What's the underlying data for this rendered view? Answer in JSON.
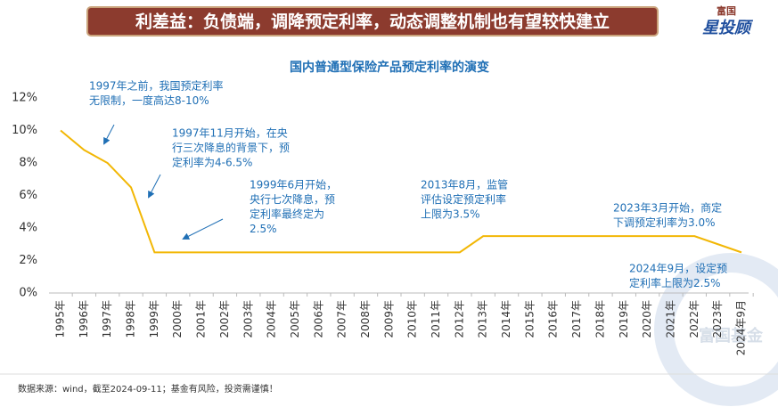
{
  "header": {
    "title": "利差益：负债端，调降预定利率，动态调整机制也有望较快建立",
    "logo_top": "富国",
    "logo_bottom": "星投顾"
  },
  "chart_data": {
    "type": "line",
    "title": "国内普通型保险产品预定利率的演变",
    "categories": [
      "1995年",
      "1996年",
      "1997年",
      "1998年",
      "1999年",
      "2000年",
      "2001年",
      "2002年",
      "2003年",
      "2004年",
      "2005年",
      "2006年",
      "2007年",
      "2008年",
      "2009年",
      "2010年",
      "2011年",
      "2012年",
      "2013年",
      "2014年",
      "2015年",
      "2016年",
      "2017年",
      "2018年",
      "2019年",
      "2020年",
      "2021年",
      "2022年",
      "2023年",
      "2024年9月"
    ],
    "series": [
      {
        "name": "预定利率",
        "color": "#f2b705",
        "values": [
          10,
          8.8,
          8,
          6.5,
          2.5,
          2.5,
          2.5,
          2.5,
          2.5,
          2.5,
          2.5,
          2.5,
          2.5,
          2.5,
          2.5,
          2.5,
          2.5,
          2.5,
          3.5,
          3.5,
          3.5,
          3.5,
          3.5,
          3.5,
          3.5,
          3.5,
          3.5,
          3.5,
          3.0,
          2.5
        ]
      }
    ],
    "ylim": [
      0,
      12
    ],
    "yticks": [
      {
        "value": 0,
        "label": "0%"
      },
      {
        "value": 2,
        "label": "2%"
      },
      {
        "value": 4,
        "label": "4%"
      },
      {
        "value": 6,
        "label": "6%"
      },
      {
        "value": 8,
        "label": "8%"
      },
      {
        "value": 10,
        "label": "10%"
      },
      {
        "value": 12,
        "label": "12%"
      }
    ],
    "annotations": [
      [
        "1997年之前，我国预定利率",
        "无限制，一度高达8-10%"
      ],
      [
        "1997年11月开始，在央",
        "行三次降息的背景下，预",
        "定利率为4-6.5%"
      ],
      [
        "1999年6月开始，",
        "央行七次降息，预",
        "定利率最终定为",
        "2.5%"
      ],
      [
        "2013年8月，监管",
        "评估设定预定利率",
        "上限为3.5%"
      ],
      [
        "2023年3月开始，商定",
        "下调预定利率为3.0%"
      ],
      [
        "2024年9月，设定预",
        "定利率上限为2.5%"
      ]
    ]
  },
  "watermark": "富国基金",
  "footer": "数据来源：wind，截至2024-09-11；基金有风险，投资需谨慎！"
}
